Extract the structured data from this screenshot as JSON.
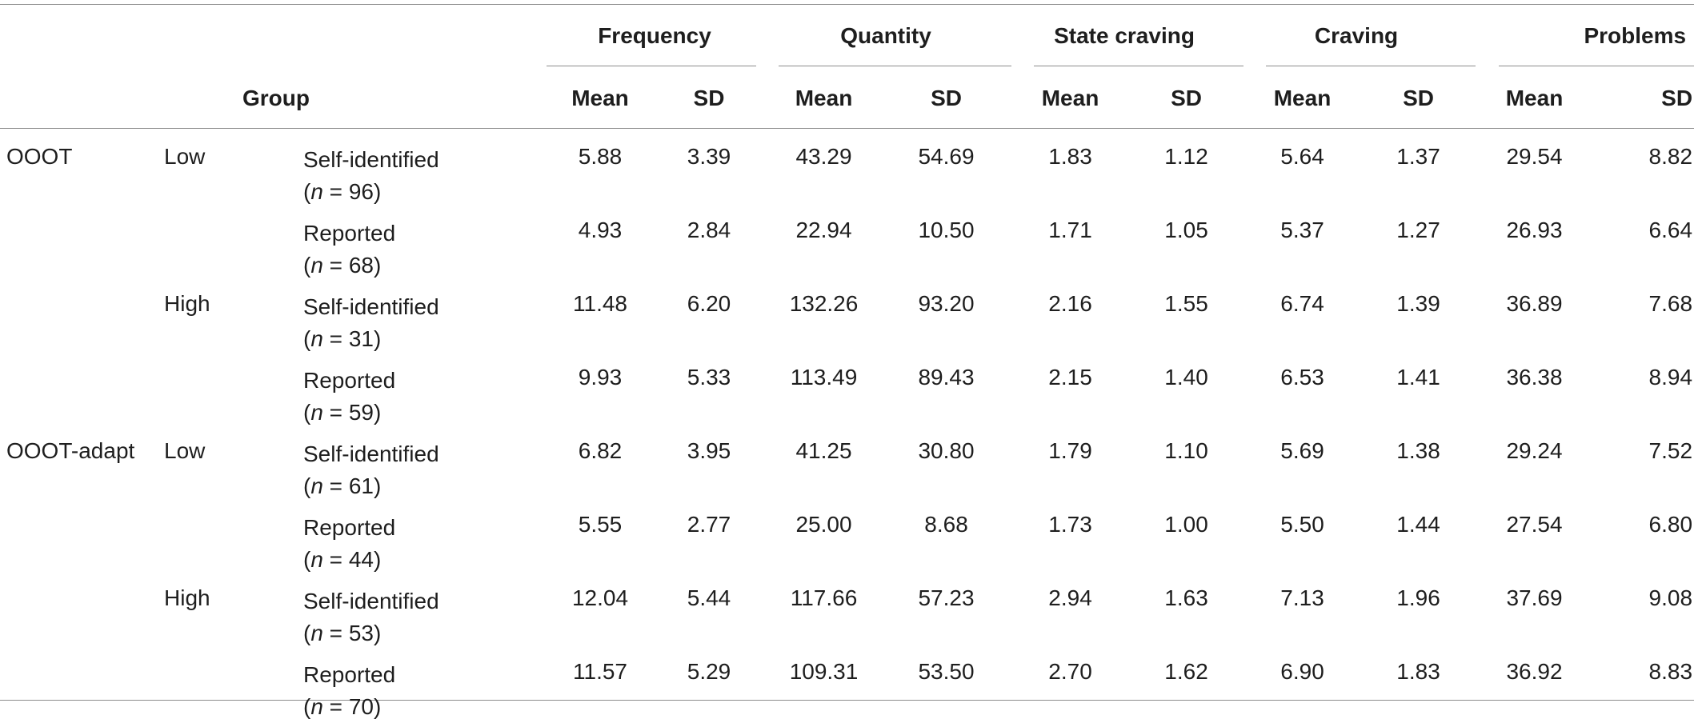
{
  "table": {
    "group_header": "Group",
    "measures": [
      "Frequency",
      "Quantity",
      "State craving",
      "Craving",
      "Problems"
    ],
    "mean_label": "Mean",
    "sd_label": "SD",
    "rows": [
      {
        "group": "OOOT",
        "level": "Low",
        "report": "Self-identified",
        "n": "96",
        "values": [
          "5.88",
          "3.39",
          "43.29",
          "54.69",
          "1.83",
          "1.12",
          "5.64",
          "1.37",
          "29.54",
          "8.82"
        ]
      },
      {
        "group": "",
        "level": "",
        "report": "Reported",
        "n": "68",
        "values": [
          "4.93",
          "2.84",
          "22.94",
          "10.50",
          "1.71",
          "1.05",
          "5.37",
          "1.27",
          "26.93",
          "6.64"
        ]
      },
      {
        "group": "",
        "level": "High",
        "report": "Self-identified",
        "n": "31",
        "values": [
          "11.48",
          "6.20",
          "132.26",
          "93.20",
          "2.16",
          "1.55",
          "6.74",
          "1.39",
          "36.89",
          "7.68"
        ]
      },
      {
        "group": "",
        "level": "",
        "report": "Reported",
        "n": "59",
        "values": [
          "9.93",
          "5.33",
          "113.49",
          "89.43",
          "2.15",
          "1.40",
          "6.53",
          "1.41",
          "36.38",
          "8.94"
        ]
      },
      {
        "group": "OOOT-adapt",
        "level": "Low",
        "report": "Self-identified",
        "n": "61",
        "values": [
          "6.82",
          "3.95",
          "41.25",
          "30.80",
          "1.79",
          "1.10",
          "5.69",
          "1.38",
          "29.24",
          "7.52"
        ]
      },
      {
        "group": "",
        "level": "",
        "report": "Reported",
        "n": "44",
        "values": [
          "5.55",
          "2.77",
          "25.00",
          "8.68",
          "1.73",
          "1.00",
          "5.50",
          "1.44",
          "27.54",
          "6.80"
        ]
      },
      {
        "group": "",
        "level": "High",
        "report": "Self-identified",
        "n": "53",
        "values": [
          "12.04",
          "5.44",
          "117.66",
          "57.23",
          "2.94",
          "1.63",
          "7.13",
          "1.96",
          "37.69",
          "9.08"
        ]
      },
      {
        "group": "",
        "level": "",
        "report": "Reported",
        "n": "70",
        "values": [
          "11.57",
          "5.29",
          "109.31",
          "53.50",
          "2.70",
          "1.62",
          "6.90",
          "1.83",
          "36.92",
          "8.83"
        ]
      }
    ]
  }
}
